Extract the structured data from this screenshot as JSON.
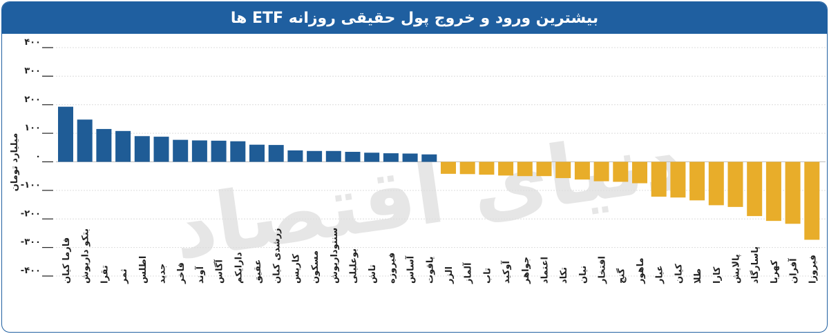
{
  "header": {
    "title": "بیشترین ورود و خروج پول حقیقی روزانه ETF ها"
  },
  "watermark": "دنیای اقتصاد",
  "colors": {
    "header": "#1f5fa0",
    "positive": "#1f5c96",
    "negative": "#e8ad2a",
    "grid": "#dcdcdc"
  },
  "chart_data": {
    "type": "bar",
    "title": "بیشترین ورود و خروج پول حقیقی روزانه ETF ها",
    "ylabel": "میلیارد تومان",
    "xlabel": "",
    "ylim": [
      -400,
      400
    ],
    "yticks": [
      400,
      300,
      200,
      100,
      0,
      -100,
      -200,
      -300,
      -400
    ],
    "ytick_labels": [
      "۴۰۰",
      "۳۰۰",
      "۲۰۰",
      "۱۰۰",
      "۰",
      "-۱۰۰",
      "-۲۰۰",
      "-۳۰۰",
      "-۴۰۰"
    ],
    "grid": true,
    "categories": [
      "فارما کیان",
      "بتکو داریوش",
      "تقرا",
      "ثمر",
      "اطلس",
      "جدید",
      "فاخر",
      "آوند",
      "آگاس",
      "دارایکم",
      "عقیق",
      "زرشدی کیان",
      "کاریس",
      "مسکون",
      "سنتوداریوش",
      "بوعلیلی",
      "تاش",
      "فیروزه",
      "آساس",
      "یاقوت",
      "الزر",
      "آلماز",
      "تاب",
      "آوکید",
      "جواهر",
      "اعتماد",
      "تکاد",
      "نیان",
      "افتخار",
      "گنج",
      "ماهور",
      "عیار",
      "کیان",
      "طلا",
      "کارا",
      "پالایش",
      "پاسارگاد",
      "کهربا",
      "آفران",
      "فیروزا"
    ],
    "values": [
      193,
      148,
      115,
      108,
      90,
      88,
      77,
      75,
      74,
      72,
      60,
      59,
      40,
      38,
      38,
      35,
      32,
      30,
      29,
      26,
      -42,
      -43,
      -45,
      -48,
      -50,
      -50,
      -57,
      -62,
      -68,
      -70,
      -75,
      -122,
      -125,
      -135,
      -152,
      -158,
      -190,
      -207,
      -217,
      -273
    ]
  }
}
